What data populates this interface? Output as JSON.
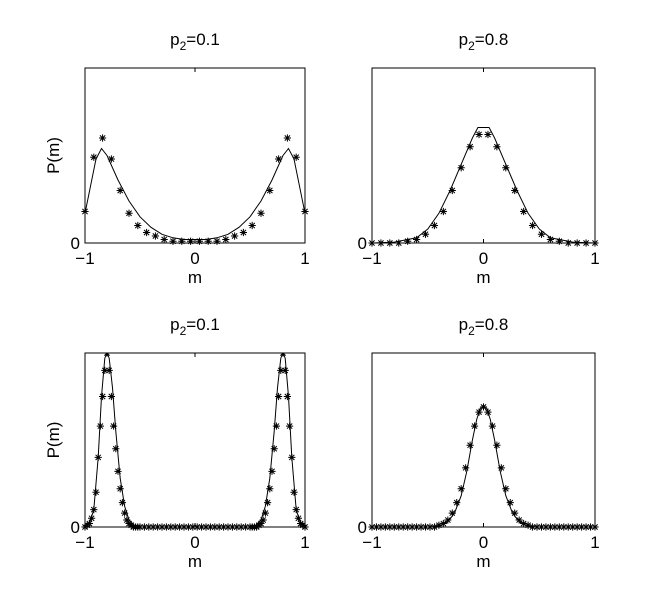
{
  "chart_data": [
    {
      "type": "line",
      "title": "p",
      "title_sub": "2",
      "title_value": "=0.1",
      "xlabel": "m",
      "ylabel": "P(m)",
      "xlim": [
        -1,
        1
      ],
      "ylim": [
        0,
        1
      ],
      "xticks": [
        {
          "v": -1,
          "label": "−1"
        },
        {
          "v": 0,
          "label": "0"
        },
        {
          "v": 1,
          "label": "1"
        }
      ],
      "yticks": [
        {
          "v": 0,
          "label": "0"
        }
      ],
      "series": [
        {
          "style": "line",
          "x": [
            -1,
            -0.9,
            -0.85,
            -0.8,
            -0.7,
            -0.6,
            -0.5,
            -0.4,
            -0.3,
            -0.2,
            -0.1,
            0,
            0.1,
            0.2,
            0.3,
            0.4,
            0.5,
            0.6,
            0.7,
            0.8,
            0.85,
            0.9,
            1
          ],
          "y": [
            0.17,
            0.48,
            0.54,
            0.5,
            0.36,
            0.24,
            0.15,
            0.09,
            0.05,
            0.03,
            0.02,
            0.02,
            0.02,
            0.03,
            0.05,
            0.09,
            0.15,
            0.24,
            0.36,
            0.5,
            0.54,
            0.48,
            0.17
          ]
        },
        {
          "style": "asterisk",
          "x": [
            -1,
            -0.92,
            -0.84,
            -0.76,
            -0.68,
            -0.6,
            -0.52,
            -0.44,
            -0.36,
            -0.28,
            -0.2,
            -0.12,
            -0.04,
            0.04,
            0.12,
            0.2,
            0.28,
            0.36,
            0.44,
            0.52,
            0.6,
            0.68,
            0.76,
            0.84,
            0.92,
            1
          ],
          "y": [
            0.18,
            0.49,
            0.6,
            0.48,
            0.3,
            0.17,
            0.1,
            0.06,
            0.04,
            0.02,
            0.01,
            0.01,
            0.01,
            0.01,
            0.01,
            0.01,
            0.02,
            0.04,
            0.06,
            0.1,
            0.17,
            0.3,
            0.48,
            0.6,
            0.49,
            0.18
          ]
        }
      ]
    },
    {
      "type": "line",
      "title": "p",
      "title_sub": "2",
      "title_value": "=0.8",
      "xlabel": "m",
      "ylabel": "",
      "xlim": [
        -1,
        1
      ],
      "ylim": [
        0,
        1
      ],
      "xticks": [
        {
          "v": -1,
          "label": "−1"
        },
        {
          "v": 0,
          "label": "0"
        },
        {
          "v": 1,
          "label": "1"
        }
      ],
      "yticks": [
        {
          "v": 0,
          "label": "0"
        }
      ],
      "series": [
        {
          "style": "line",
          "x": [
            -1,
            -0.8,
            -0.6,
            -0.5,
            -0.4,
            -0.3,
            -0.2,
            -0.1,
            -0.05,
            0,
            0.05,
            0.1,
            0.2,
            0.3,
            0.4,
            0.5,
            0.6,
            0.8,
            1
          ],
          "y": [
            0,
            0.005,
            0.03,
            0.08,
            0.17,
            0.3,
            0.45,
            0.6,
            0.66,
            0.66,
            0.66,
            0.6,
            0.45,
            0.3,
            0.17,
            0.08,
            0.03,
            0.005,
            0
          ]
        },
        {
          "style": "asterisk",
          "x": [
            -1,
            -0.92,
            -0.84,
            -0.76,
            -0.68,
            -0.6,
            -0.52,
            -0.44,
            -0.36,
            -0.28,
            -0.2,
            -0.12,
            -0.04,
            0.04,
            0.12,
            0.2,
            0.28,
            0.36,
            0.44,
            0.52,
            0.6,
            0.68,
            0.76,
            0.84,
            0.92,
            1
          ],
          "y": [
            0,
            0,
            0,
            0,
            0.01,
            0.02,
            0.05,
            0.1,
            0.18,
            0.3,
            0.43,
            0.55,
            0.62,
            0.62,
            0.55,
            0.43,
            0.3,
            0.18,
            0.1,
            0.05,
            0.02,
            0.01,
            0,
            0,
            0,
            0
          ]
        }
      ]
    },
    {
      "type": "line",
      "title": "p",
      "title_sub": "2",
      "title_value": "=0.1",
      "xlabel": "m",
      "ylabel": "P(m)",
      "xlim": [
        -1,
        1
      ],
      "ylim": [
        0,
        1
      ],
      "xticks": [
        {
          "v": -1,
          "label": "−1"
        },
        {
          "v": 0,
          "label": "0"
        },
        {
          "v": 1,
          "label": "1"
        }
      ],
      "yticks": [
        {
          "v": 0,
          "label": "0"
        }
      ],
      "series": [
        {
          "style": "line",
          "x": [
            -1,
            -0.96,
            -0.92,
            -0.88,
            -0.85,
            -0.82,
            -0.8,
            -0.78,
            -0.75,
            -0.72,
            -0.68,
            -0.64,
            -0.6,
            -0.55,
            -0.5,
            -0.3,
            0,
            0.3,
            0.5,
            0.55,
            0.6,
            0.64,
            0.68,
            0.72,
            0.75,
            0.78,
            0.8,
            0.82,
            0.85,
            0.88,
            0.92,
            0.96,
            1
          ],
          "y": [
            0,
            0.02,
            0.1,
            0.4,
            0.75,
            0.97,
            1,
            0.97,
            0.8,
            0.55,
            0.28,
            0.12,
            0.04,
            0.01,
            0,
            0,
            0,
            0,
            0,
            0.01,
            0.04,
            0.12,
            0.28,
            0.55,
            0.8,
            0.97,
            1,
            0.97,
            0.75,
            0.4,
            0.1,
            0.02,
            0
          ]
        },
        {
          "style": "asterisk",
          "x": [
            -1,
            -0.98,
            -0.96,
            -0.94,
            -0.92,
            -0.9,
            -0.88,
            -0.86,
            -0.84,
            -0.82,
            -0.8,
            -0.78,
            -0.76,
            -0.74,
            -0.72,
            -0.7,
            -0.68,
            -0.66,
            -0.64,
            -0.62,
            -0.6,
            -0.58,
            -0.56,
            -0.54,
            -0.52,
            -0.5,
            -0.46,
            -0.42,
            -0.38,
            -0.34,
            -0.3,
            -0.26,
            -0.22,
            -0.18,
            -0.14,
            -0.1,
            -0.06,
            -0.02,
            0.02,
            0.06,
            0.1,
            0.14,
            0.18,
            0.22,
            0.26,
            0.3,
            0.34,
            0.38,
            0.42,
            0.46,
            0.5,
            0.52,
            0.54,
            0.56,
            0.58,
            0.6,
            0.62,
            0.64,
            0.66,
            0.68,
            0.7,
            0.72,
            0.74,
            0.76,
            0.78,
            0.8,
            0.82,
            0.84,
            0.86,
            0.88,
            0.9,
            0.92,
            0.94,
            0.96,
            0.98,
            1
          ],
          "y": [
            0,
            0.01,
            0.02,
            0.05,
            0.1,
            0.2,
            0.4,
            0.58,
            0.75,
            0.9,
            1,
            0.9,
            0.75,
            0.58,
            0.45,
            0.32,
            0.22,
            0.14,
            0.08,
            0.04,
            0.02,
            0.01,
            0,
            0,
            0,
            0,
            0,
            0,
            0,
            0,
            0,
            0,
            0,
            0,
            0,
            0,
            0,
            0,
            0,
            0,
            0,
            0,
            0,
            0,
            0,
            0,
            0,
            0,
            0,
            0,
            0,
            0,
            0,
            0,
            0.01,
            0.02,
            0.04,
            0.08,
            0.14,
            0.22,
            0.32,
            0.45,
            0.58,
            0.75,
            0.9,
            1,
            0.9,
            0.75,
            0.58,
            0.4,
            0.2,
            0.1,
            0.05,
            0.02,
            0.01,
            0
          ]
        }
      ]
    },
    {
      "type": "line",
      "title": "p",
      "title_sub": "2",
      "title_value": "=0.8",
      "xlabel": "m",
      "ylabel": "",
      "xlim": [
        -1,
        1
      ],
      "ylim": [
        0,
        1
      ],
      "xticks": [
        {
          "v": -1,
          "label": "−1"
        },
        {
          "v": 0,
          "label": "0"
        },
        {
          "v": 1,
          "label": "1"
        }
      ],
      "yticks": [
        {
          "v": 0,
          "label": "0"
        }
      ],
      "series": [
        {
          "style": "line",
          "x": [
            -1,
            -0.5,
            -0.4,
            -0.32,
            -0.26,
            -0.2,
            -0.15,
            -0.1,
            -0.06,
            -0.03,
            0,
            0.03,
            0.06,
            0.1,
            0.15,
            0.2,
            0.26,
            0.32,
            0.4,
            0.5,
            1
          ],
          "y": [
            0,
            0,
            0.005,
            0.03,
            0.08,
            0.18,
            0.32,
            0.5,
            0.62,
            0.68,
            0.7,
            0.68,
            0.62,
            0.5,
            0.32,
            0.18,
            0.08,
            0.03,
            0.005,
            0,
            0
          ]
        },
        {
          "style": "asterisk",
          "x": [
            -1,
            -0.96,
            -0.92,
            -0.88,
            -0.84,
            -0.8,
            -0.76,
            -0.72,
            -0.68,
            -0.64,
            -0.6,
            -0.56,
            -0.52,
            -0.48,
            -0.44,
            -0.4,
            -0.36,
            -0.32,
            -0.28,
            -0.24,
            -0.2,
            -0.16,
            -0.12,
            -0.08,
            -0.04,
            0,
            0.04,
            0.08,
            0.12,
            0.16,
            0.2,
            0.24,
            0.28,
            0.32,
            0.36,
            0.4,
            0.44,
            0.48,
            0.52,
            0.56,
            0.6,
            0.64,
            0.68,
            0.72,
            0.76,
            0.8,
            0.84,
            0.88,
            0.92,
            0.96,
            1
          ],
          "y": [
            0,
            0,
            0,
            0,
            0,
            0,
            0,
            0,
            0,
            0,
            0,
            0,
            0,
            0,
            0,
            0.01,
            0.02,
            0.04,
            0.08,
            0.14,
            0.22,
            0.34,
            0.47,
            0.58,
            0.66,
            0.69,
            0.66,
            0.58,
            0.47,
            0.34,
            0.22,
            0.14,
            0.08,
            0.04,
            0.02,
            0.01,
            0,
            0,
            0,
            0,
            0,
            0,
            0,
            0,
            0,
            0,
            0,
            0,
            0,
            0,
            0
          ]
        }
      ]
    }
  ]
}
